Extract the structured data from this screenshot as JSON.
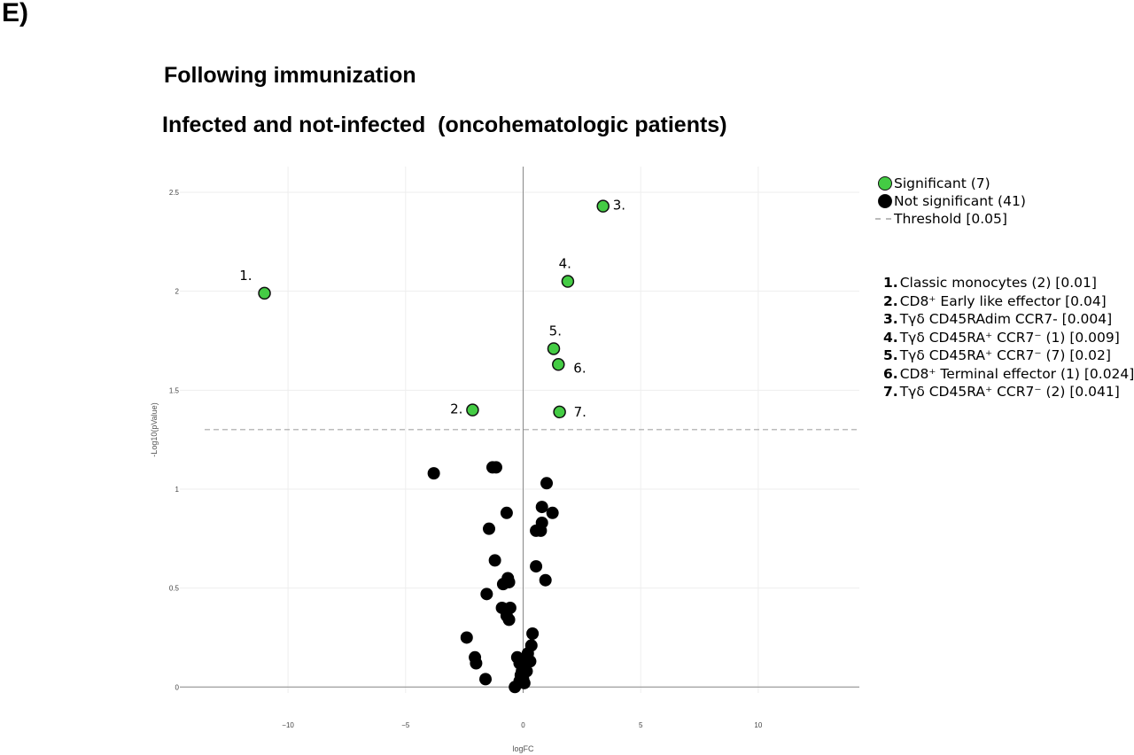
{
  "panel_label": "E)",
  "headings": {
    "line1": "Following immunization",
    "line2": "Infected and not-infected  (oncohematologic patients)"
  },
  "legend": {
    "significant": "Significant (7)",
    "not_significant": "Not significant (41)",
    "threshold": "Threshold [0.05]"
  },
  "key_items": [
    {
      "num": "1.",
      "text": "Classic monocytes (2) [0.01]"
    },
    {
      "num": "2.",
      "text": "CD8⁺ Early like effector [0.04]"
    },
    {
      "num": "3.",
      "text": "Tγδ CD45RAdim CCR7- [0.004]"
    },
    {
      "num": "4.",
      "text": "Tγδ CD45RA⁺ CCR7⁻ (1) [0.009]"
    },
    {
      "num": "5.",
      "text": "Tγδ CD45RA⁺ CCR7⁻ (7) [0.02]"
    },
    {
      "num": "6.",
      "text": "CD8⁺ Terminal effector (1) [0.024]"
    },
    {
      "num": "7.",
      "text": "Tγδ CD45RA⁺ CCR7⁻ (2) [0.041]"
    }
  ],
  "colors": {
    "significant": "#44cc44",
    "not_significant": "#000000",
    "threshold": "#bbbbbb",
    "grid": "#eeeeee",
    "zero_line": "#888888"
  },
  "chart_data": {
    "type": "scatter",
    "title": "",
    "xlabel": "logFC",
    "ylabel": "-Log10(pValue)",
    "xlim": [
      -14.6,
      14.3
    ],
    "ylim": [
      -0.03,
      2.63
    ],
    "xticks": [
      -10,
      -5,
      0,
      5,
      10
    ],
    "yticks": [
      0,
      0.5,
      1,
      1.5,
      2,
      2.5
    ],
    "grid": true,
    "legend_position": "top-right",
    "threshold": 1.301,
    "series": [
      {
        "name": "Significant (7)",
        "points": [
          {
            "x": -11.0,
            "y": 1.99,
            "label": "1."
          },
          {
            "x": -2.15,
            "y": 1.4,
            "label": "2."
          },
          {
            "x": 3.4,
            "y": 2.43,
            "label": "3."
          },
          {
            "x": 1.9,
            "y": 2.05,
            "label": "4."
          },
          {
            "x": 1.3,
            "y": 1.71,
            "label": "5."
          },
          {
            "x": 1.5,
            "y": 1.63,
            "label": "6."
          },
          {
            "x": 1.55,
            "y": 1.39,
            "label": "7."
          }
        ]
      },
      {
        "name": "Not significant (41)",
        "points": [
          {
            "x": -3.8,
            "y": 1.08
          },
          {
            "x": -1.3,
            "y": 1.11
          },
          {
            "x": -1.15,
            "y": 1.11
          },
          {
            "x": 1.0,
            "y": 1.03
          },
          {
            "x": 0.8,
            "y": 0.91
          },
          {
            "x": -0.7,
            "y": 0.88
          },
          {
            "x": 1.25,
            "y": 0.88
          },
          {
            "x": 0.8,
            "y": 0.83
          },
          {
            "x": -1.45,
            "y": 0.8
          },
          {
            "x": 0.75,
            "y": 0.79
          },
          {
            "x": 0.55,
            "y": 0.79
          },
          {
            "x": -1.2,
            "y": 0.64
          },
          {
            "x": 0.55,
            "y": 0.61
          },
          {
            "x": -0.65,
            "y": 0.55
          },
          {
            "x": 0.95,
            "y": 0.54
          },
          {
            "x": -0.85,
            "y": 0.52
          },
          {
            "x": -0.6,
            "y": 0.53
          },
          {
            "x": -1.55,
            "y": 0.47
          },
          {
            "x": -0.9,
            "y": 0.4
          },
          {
            "x": -0.55,
            "y": 0.4
          },
          {
            "x": -0.7,
            "y": 0.36
          },
          {
            "x": -0.6,
            "y": 0.34
          },
          {
            "x": 0.4,
            "y": 0.27
          },
          {
            "x": -2.4,
            "y": 0.25
          },
          {
            "x": 0.35,
            "y": 0.21
          },
          {
            "x": 0.2,
            "y": 0.17
          },
          {
            "x": -2.05,
            "y": 0.15
          },
          {
            "x": -0.25,
            "y": 0.15
          },
          {
            "x": 0.3,
            "y": 0.13
          },
          {
            "x": -0.15,
            "y": 0.12
          },
          {
            "x": 0.1,
            "y": 0.12
          },
          {
            "x": -2.0,
            "y": 0.12
          },
          {
            "x": 0.05,
            "y": 0.1
          },
          {
            "x": -0.05,
            "y": 0.08
          },
          {
            "x": 0.15,
            "y": 0.08
          },
          {
            "x": -0.1,
            "y": 0.06
          },
          {
            "x": -1.6,
            "y": 0.04
          },
          {
            "x": 0.0,
            "y": 0.04
          },
          {
            "x": 0.05,
            "y": 0.02
          },
          {
            "x": -0.35,
            "y": 0.0
          },
          {
            "x": -0.15,
            "y": 0.03
          }
        ]
      }
    ]
  }
}
